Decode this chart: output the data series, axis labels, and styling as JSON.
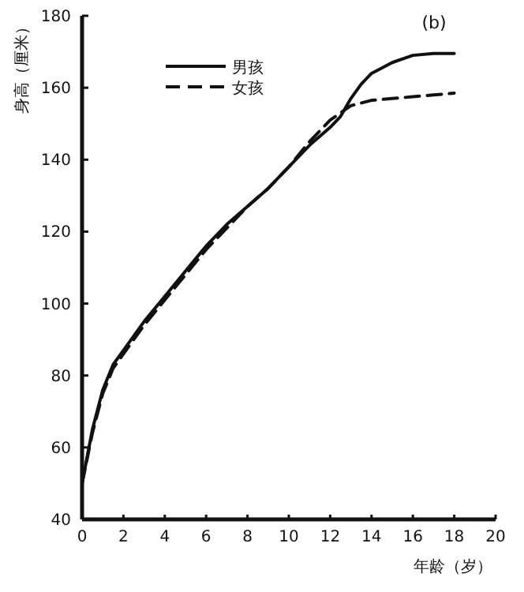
{
  "chart_data": {
    "type": "line",
    "xlabel": "年龄（岁）",
    "ylabel": "身高（厘米）",
    "annotations": [
      "(b)"
    ],
    "xlim": [
      0,
      20
    ],
    "xticks": [
      0,
      2,
      4,
      6,
      8,
      10,
      12,
      14,
      16,
      18,
      20
    ],
    "ylim": [
      40,
      180
    ],
    "yticks": [
      40,
      60,
      80,
      100,
      120,
      140,
      160,
      180
    ],
    "legend": "top left",
    "grid": false,
    "series": [
      {
        "name": "男孩",
        "color": "#111111",
        "line_style": "solid",
        "x": [
          0,
          0.5,
          1,
          1.5,
          2,
          3,
          4,
          5,
          6,
          7,
          8,
          9,
          10,
          11,
          12,
          12.5,
          13,
          13.5,
          14,
          15,
          16,
          17,
          18
        ],
        "values": [
          50,
          65,
          76,
          83,
          87,
          95,
          102,
          109,
          116,
          122,
          127,
          132,
          138,
          144,
          149,
          152,
          157,
          161,
          164,
          167,
          169,
          169.5,
          169.5
        ]
      },
      {
        "name": "女孩",
        "color": "#111111",
        "line_style": "dashed",
        "x": [
          0,
          0.5,
          1,
          1.5,
          2,
          3,
          4,
          5,
          6,
          7,
          8,
          9,
          10,
          11,
          12,
          12.5,
          13,
          14,
          15,
          16,
          17,
          18
        ],
        "values": [
          50,
          64,
          75,
          82,
          86,
          94,
          101,
          108,
          115,
          121,
          127,
          132,
          138,
          145,
          151,
          153,
          155,
          156.5,
          157,
          157.5,
          158,
          158.5
        ]
      }
    ]
  }
}
